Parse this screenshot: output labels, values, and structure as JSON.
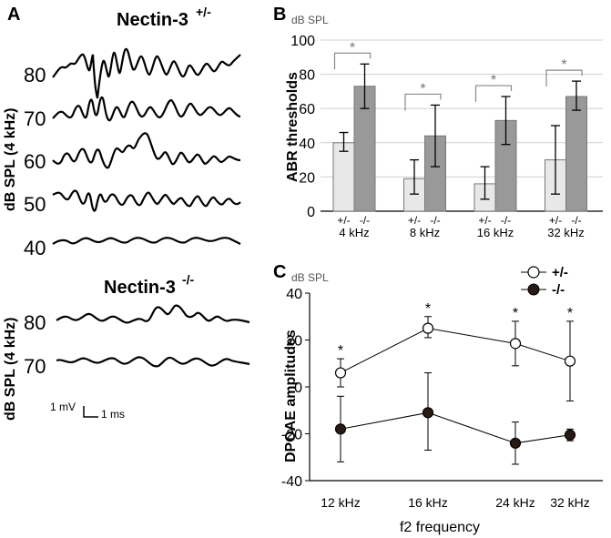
{
  "panelA": {
    "label": "A",
    "group1": {
      "title": "Nectin-3",
      "superscript": "+/-"
    },
    "group1_levels": [
      "80",
      "70",
      "60",
      "50",
      "40"
    ],
    "group1_ylabel": "dB SPL (4 kHz)",
    "group2": {
      "title": "Nectin-3",
      "superscript": "-/-"
    },
    "group2_levels": [
      "80",
      "70"
    ],
    "group2_ylabel": "dB SPL (4 kHz)",
    "scale_bar": {
      "voltage": "1 mV",
      "time": "1 ms"
    }
  },
  "chart_data": [
    {
      "panel": "B",
      "type": "bar",
      "units_label": "dB SPL",
      "ylabel": "ABR thresholds",
      "ylim": [
        0,
        100
      ],
      "yticks": [
        0,
        20,
        40,
        60,
        80,
        100
      ],
      "group_labels": [
        "+/-",
        "-/-"
      ],
      "categories": [
        "4 kHz",
        "8 kHz",
        "16 kHz",
        "32 kHz"
      ],
      "series": [
        {
          "name": "+/-",
          "color": "#e8e8e8",
          "values": [
            40,
            19,
            16,
            30
          ],
          "err_low": [
            35,
            10,
            7,
            10
          ],
          "err_high": [
            46,
            30,
            26,
            50
          ]
        },
        {
          "name": "-/-",
          "color": "#999999",
          "values": [
            73,
            44,
            53,
            67
          ],
          "err_low": [
            60,
            26,
            39,
            59
          ],
          "err_high": [
            86,
            62,
            67,
            76
          ]
        }
      ],
      "significance": "*",
      "grid": true
    },
    {
      "panel": "C",
      "type": "line",
      "units_label": "dB SPL",
      "ylabel": "DPOAE amplitudes",
      "xlabel": "f2 frequency",
      "ylim": [
        -40,
        40
      ],
      "yticks": [
        -40,
        -20,
        0,
        20,
        40
      ],
      "categories": [
        "12 kHz",
        "16 kHz",
        "24 kHz",
        "32 kHz"
      ],
      "series": [
        {
          "name": "+/-",
          "marker": "open-circle",
          "values": [
            6,
            25,
            18.5,
            11
          ],
          "err_low": [
            0,
            21,
            9,
            -6
          ],
          "err_high": [
            12,
            30,
            28,
            28
          ]
        },
        {
          "name": "-/-",
          "marker": "filled-circle",
          "color": "#2b1a14",
          "values": [
            -18,
            -11,
            -24,
            -20.5
          ],
          "err_low": [
            -32,
            -27,
            -33,
            -23
          ],
          "err_high": [
            -4,
            6,
            -15,
            -18
          ]
        }
      ],
      "significance": "*",
      "legend": "top-right"
    }
  ]
}
